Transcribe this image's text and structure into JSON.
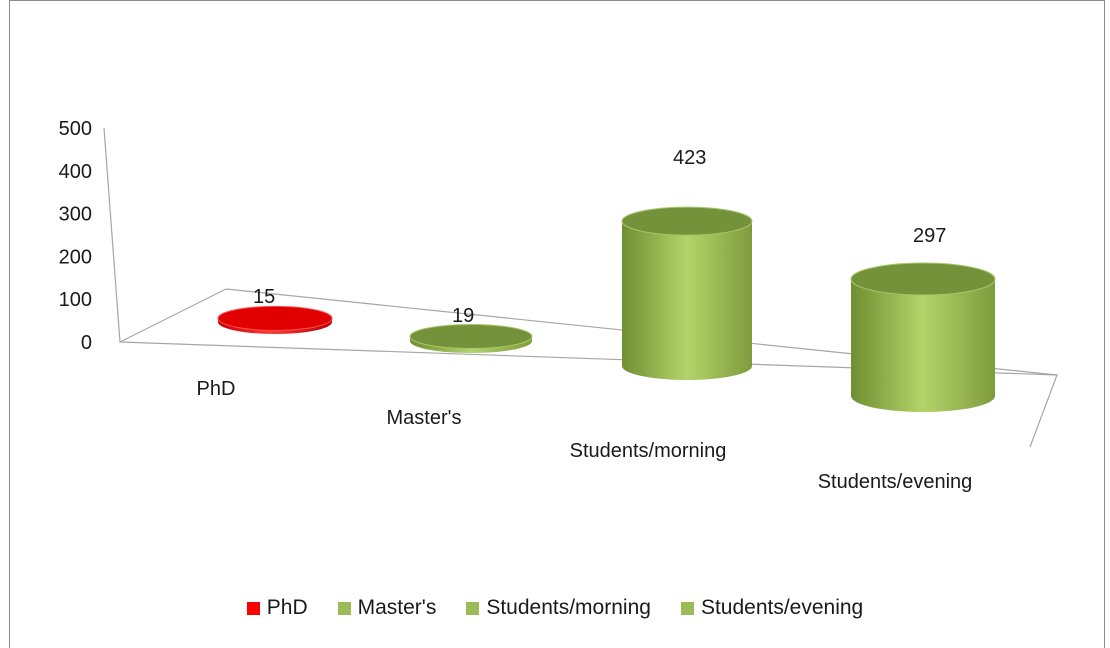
{
  "chart_data": {
    "type": "bar",
    "style": "3d-cylinder",
    "title": "",
    "xlabel": "",
    "ylabel": "",
    "ylim": [
      0,
      500
    ],
    "yticks": [
      0,
      100,
      200,
      300,
      400,
      500
    ],
    "grid": false,
    "legend_position": "bottom",
    "categories": [
      "PhD",
      "Master's",
      "Students/morning",
      "Students/evening"
    ],
    "values": [
      15,
      19,
      423,
      297
    ],
    "data_labels": [
      "15",
      "19",
      "423",
      "297"
    ],
    "colors": [
      "#ff0000",
      "#9bbb59",
      "#9bbb59",
      "#9bbb59"
    ],
    "legend": [
      {
        "label": "PhD",
        "color": "#ff0000"
      },
      {
        "label": "Master's",
        "color": "#9bbb59"
      },
      {
        "label": "Students/morning",
        "color": "#9bbb59"
      },
      {
        "label": "Students/evening",
        "color": "#9bbb59"
      }
    ]
  }
}
